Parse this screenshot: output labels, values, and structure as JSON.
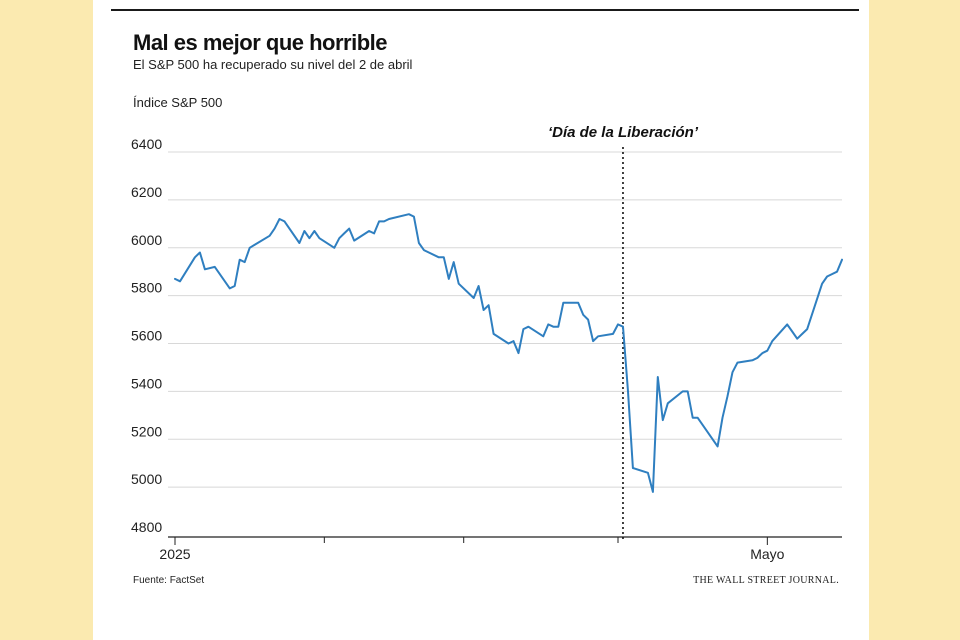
{
  "header": {
    "title": "Mal es mejor que horrible",
    "subtitle": "El S&P 500 ha recuperado su nivel del 2 de abril",
    "unit_label": "Índice S&P 500"
  },
  "footer": {
    "source": "Fuente: FactSet",
    "publisher": "THE WALL STREET JOURNAL."
  },
  "colors": {
    "line": "#2f7fc0",
    "grid": "#d8d8d8",
    "axis": "#222222",
    "background": "#fbeab0"
  },
  "chart_data": {
    "type": "line",
    "title": "Mal es mejor que horrible",
    "subtitle": "El S&P 500 ha recuperado su nivel del 2 de abril",
    "ylabel": "Índice S&P 500",
    "ylim": [
      4800,
      6400
    ],
    "yticks": [
      4800,
      5000,
      5200,
      5400,
      5600,
      5800,
      6000,
      6200,
      6400
    ],
    "xlim": [
      "2025-01-02",
      "2025-05-16"
    ],
    "xtick_labels": [
      {
        "date": "2025-01-02",
        "label": "2025"
      },
      {
        "date": "2025-05-01",
        "label": "Mayo"
      }
    ],
    "xtick_minor": [
      "2025-02-01",
      "2025-03-01",
      "2025-04-01"
    ],
    "grid": true,
    "annotations": [
      {
        "date": "2025-04-02",
        "label": "‘Día de la Liberación’",
        "style": "dotted-vertical"
      }
    ],
    "series": [
      {
        "x": [
          "2025-01-02",
          "2025-01-03",
          "2025-01-06",
          "2025-01-07",
          "2025-01-08",
          "2025-01-10",
          "2025-01-13",
          "2025-01-14",
          "2025-01-15",
          "2025-01-16",
          "2025-01-17",
          "2025-01-21",
          "2025-01-22",
          "2025-01-23",
          "2025-01-24",
          "2025-01-27",
          "2025-01-28",
          "2025-01-29",
          "2025-01-30",
          "2025-01-31",
          "2025-02-03",
          "2025-02-04",
          "2025-02-05",
          "2025-02-06",
          "2025-02-07",
          "2025-02-10",
          "2025-02-11",
          "2025-02-12",
          "2025-02-13",
          "2025-02-14",
          "2025-02-18",
          "2025-02-19",
          "2025-02-20",
          "2025-02-21",
          "2025-02-24",
          "2025-02-25",
          "2025-02-26",
          "2025-02-27",
          "2025-02-28",
          "2025-03-03",
          "2025-03-04",
          "2025-03-05",
          "2025-03-06",
          "2025-03-07",
          "2025-03-10",
          "2025-03-11",
          "2025-03-12",
          "2025-03-13",
          "2025-03-14",
          "2025-03-17",
          "2025-03-18",
          "2025-03-19",
          "2025-03-20",
          "2025-03-21",
          "2025-03-24",
          "2025-03-25",
          "2025-03-26",
          "2025-03-27",
          "2025-03-28",
          "2025-03-31",
          "2025-04-01",
          "2025-04-02",
          "2025-04-03",
          "2025-04-04",
          "2025-04-07",
          "2025-04-08",
          "2025-04-09",
          "2025-04-10",
          "2025-04-11",
          "2025-04-14",
          "2025-04-15",
          "2025-04-16",
          "2025-04-17",
          "2025-04-21",
          "2025-04-22",
          "2025-04-23",
          "2025-04-24",
          "2025-04-25",
          "2025-04-28",
          "2025-04-29",
          "2025-04-30",
          "2025-05-01",
          "2025-05-02",
          "2025-05-05",
          "2025-05-06",
          "2025-05-07",
          "2025-05-08",
          "2025-05-09",
          "2025-05-12",
          "2025-05-13",
          "2025-05-14",
          "2025-05-15",
          "2025-05-16"
        ],
        "values": [
          5870,
          5860,
          5960,
          5980,
          5910,
          5920,
          5830,
          5840,
          5950,
          5940,
          6000,
          6050,
          6080,
          6120,
          6110,
          6020,
          6070,
          6040,
          6070,
          6040,
          6000,
          6040,
          6060,
          6080,
          6030,
          6070,
          6060,
          6110,
          6110,
          6120,
          6140,
          6130,
          6020,
          5990,
          5960,
          5960,
          5870,
          5940,
          5850,
          5790,
          5840,
          5740,
          5760,
          5640,
          5600,
          5610,
          5560,
          5660,
          5670,
          5630,
          5680,
          5670,
          5670,
          5770,
          5770,
          5720,
          5700,
          5610,
          5630,
          5640,
          5680,
          5670,
          5400,
          5080,
          5060,
          4980,
          5460,
          5280,
          5350,
          5400,
          5400,
          5290,
          5290,
          5170,
          5290,
          5380,
          5480,
          5520,
          5530,
          5540,
          5560,
          5570,
          5610,
          5680,
          5650,
          5620,
          5640,
          5660,
          5850,
          5880,
          5890,
          5900,
          5950
        ]
      }
    ]
  }
}
